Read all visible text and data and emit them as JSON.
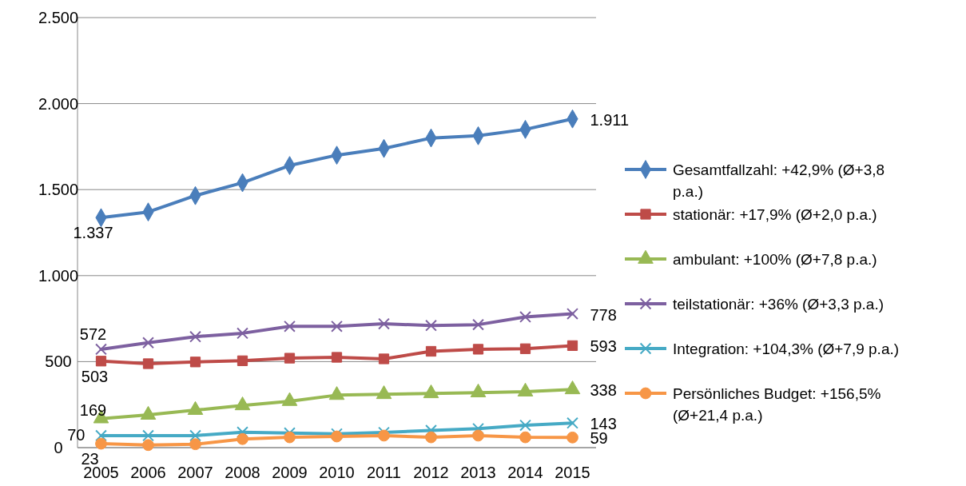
{
  "chart_data": {
    "type": "line",
    "categories": [
      "2005",
      "2006",
      "2007",
      "2008",
      "2009",
      "2010",
      "2011",
      "2012",
      "2013",
      "2014",
      "2015"
    ],
    "ylim": [
      0,
      2500
    ],
    "yticks": [
      0,
      500,
      {
        "value": 1000,
        "label": "1.000"
      },
      {
        "value": 1500,
        "label": "1.500"
      },
      {
        "value": 2000,
        "label": "2.000"
      },
      {
        "value": 2500,
        "label": "2.500"
      }
    ],
    "grid": "y",
    "legend": "right",
    "line_style": "solid",
    "series": [
      {
        "name": "Gesamtfallzahl: +42,9% (Ø+3,8 p.a.)",
        "color": "#4a7ebb",
        "marker": "diamond",
        "values": [
          1337,
          1370,
          1465,
          1540,
          1640,
          1700,
          1739,
          1800,
          1813,
          1850,
          1911
        ],
        "value_labels": [
          "1.337",
          null,
          null,
          null,
          null,
          null,
          null,
          null,
          null,
          null,
          "1.911"
        ]
      },
      {
        "name": "stationär: +17,9% (Ø+2,0 p.a.)",
        "color": "#be4b48",
        "marker": "square",
        "values": [
          503,
          488,
          498,
          505,
          520,
          525,
          516,
          560,
          572,
          575,
          593
        ],
        "value_labels": [
          "503",
          null,
          null,
          null,
          null,
          null,
          null,
          null,
          null,
          null,
          "593"
        ]
      },
      {
        "name": "ambulant: +100% (Ø+7,8 p.a.)",
        "color": "#98b954",
        "marker": "triangle",
        "values": [
          169,
          190,
          218,
          245,
          270,
          305,
          310,
          315,
          320,
          325,
          338
        ],
        "value_labels": [
          "169",
          null,
          null,
          null,
          null,
          null,
          null,
          null,
          null,
          null,
          "338"
        ]
      },
      {
        "name": "teilstationär: +36% (Ø+3,3 p.a.)",
        "color": "#7d60a0",
        "marker": "cross",
        "values": [
          572,
          610,
          645,
          665,
          705,
          705,
          720,
          710,
          715,
          760,
          778
        ],
        "value_labels": [
          "572",
          null,
          null,
          null,
          null,
          null,
          null,
          null,
          null,
          null,
          "778"
        ]
      },
      {
        "name": "Integration: +104,3% (Ø+7,9 p.a.)",
        "color": "#46aac5",
        "marker": "cross",
        "values": [
          70,
          70,
          70,
          90,
          85,
          80,
          88,
          100,
          110,
          130,
          143
        ],
        "value_labels": [
          "70",
          null,
          null,
          null,
          null,
          null,
          null,
          null,
          null,
          null,
          "143"
        ]
      },
      {
        "name": "Persönliches Budget: +156,5% (Ø+21,4 p.a.)",
        "color": "#f79646",
        "marker": "circle",
        "values": [
          23,
          15,
          20,
          50,
          60,
          65,
          70,
          60,
          70,
          60,
          59
        ],
        "value_labels": [
          "23",
          null,
          null,
          null,
          null,
          null,
          null,
          null,
          null,
          null,
          "59"
        ]
      }
    ]
  }
}
